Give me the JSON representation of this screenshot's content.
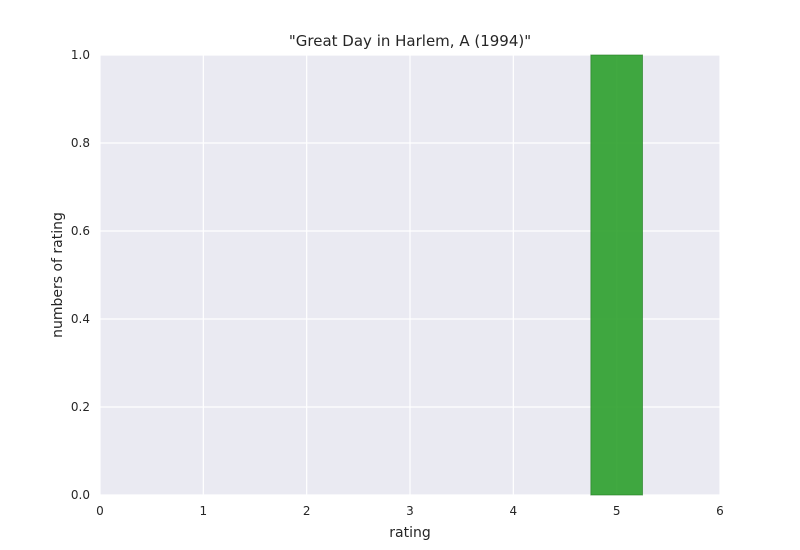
{
  "chart_data": {
    "type": "bar",
    "title": "\"Great Day in Harlem, A (1994)\"",
    "xlabel": "rating",
    "ylabel": "numbers of rating",
    "xlim": [
      0,
      6
    ],
    "ylim": [
      0,
      1.0
    ],
    "x_ticks": [
      "0",
      "1",
      "2",
      "3",
      "4",
      "5",
      "6"
    ],
    "y_ticks": [
      "0.0",
      "0.2",
      "0.4",
      "0.6",
      "0.8",
      "1.0"
    ],
    "grid": true,
    "bar_width": 0.5,
    "bars": [
      {
        "x": 0.5,
        "value": 0
      },
      {
        "x": 1.0,
        "value": 0
      },
      {
        "x": 1.5,
        "value": 0
      },
      {
        "x": 2.0,
        "value": 0
      },
      {
        "x": 2.5,
        "value": 0
      },
      {
        "x": 3.0,
        "value": 0
      },
      {
        "x": 3.5,
        "value": 0
      },
      {
        "x": 4.0,
        "value": 0
      },
      {
        "x": 4.5,
        "value": 0
      },
      {
        "x": 5.0,
        "value": 1
      }
    ],
    "colors": {
      "plot_background": "#eaeaf2",
      "grid": "#ffffff",
      "bar": "#2ca02c"
    }
  }
}
